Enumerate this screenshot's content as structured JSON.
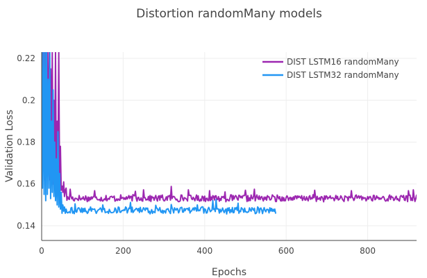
{
  "chart_data": {
    "type": "line",
    "title": "Distortion randomMany models",
    "xlabel": "Epochs",
    "ylabel": "Validation Loss",
    "xlim": [
      0,
      920
    ],
    "ylim": [
      0.133,
      0.223
    ],
    "x_ticks": [
      0,
      200,
      400,
      600,
      800
    ],
    "y_ticks": [
      0.14,
      0.16,
      0.18,
      0.2,
      0.22
    ],
    "x_tick_labels": [
      "0",
      "200",
      "400",
      "600",
      "800"
    ],
    "y_tick_labels": [
      "0.14",
      "0.16",
      "0.18",
      "0.2",
      "0.22"
    ],
    "grid": true,
    "legend_position": "top-right",
    "series": [
      {
        "name": "DIST LSTM16 randomMany",
        "color": "#9c27b0",
        "points": [
          [
            0,
            0.176
          ],
          [
            2,
            0.223
          ],
          [
            4,
            0.168
          ],
          [
            6,
            0.223
          ],
          [
            8,
            0.162
          ],
          [
            10,
            0.223
          ],
          [
            12,
            0.165
          ],
          [
            14,
            0.223
          ],
          [
            16,
            0.17
          ],
          [
            18,
            0.223
          ],
          [
            20,
            0.162
          ],
          [
            22,
            0.215
          ],
          [
            24,
            0.168
          ],
          [
            26,
            0.223
          ],
          [
            28,
            0.16
          ],
          [
            30,
            0.2
          ],
          [
            32,
            0.165
          ],
          [
            34,
            0.223
          ],
          [
            36,
            0.16
          ],
          [
            38,
            0.19
          ],
          [
            40,
            0.166
          ],
          [
            42,
            0.223
          ],
          [
            44,
            0.162
          ],
          [
            46,
            0.178
          ],
          [
            48,
            0.157
          ],
          [
            50,
            0.159
          ],
          [
            52,
            0.156
          ],
          [
            54,
            0.161
          ],
          [
            56,
            0.154
          ],
          [
            58,
            0.157
          ],
          [
            60,
            0.158
          ]
        ],
        "trend": {
          "start": 60,
          "end": 920,
          "step": 2,
          "base": 0.1532,
          "noise_amplitude": 0.0015
        },
        "spikes": [
          [
            70,
            0.1575
          ],
          [
            130,
            0.1568
          ],
          [
            230,
            0.1565
          ],
          [
            250,
            0.1572
          ],
          [
            318,
            0.1588
          ],
          [
            360,
            0.1572
          ],
          [
            412,
            0.1568
          ],
          [
            425,
            0.1588
          ],
          [
            450,
            0.1562
          ],
          [
            500,
            0.157
          ],
          [
            522,
            0.1575
          ],
          [
            585,
            0.1585
          ],
          [
            670,
            0.157
          ],
          [
            760,
            0.1568
          ],
          [
            815,
            0.1582
          ],
          [
            825,
            0.159
          ],
          [
            900,
            0.1568
          ],
          [
            912,
            0.1572
          ]
        ]
      },
      {
        "name": "DIST LSTM32 randomMany",
        "color": "#2196f3",
        "points": [
          [
            0,
            0.223
          ],
          [
            2,
            0.158
          ],
          [
            4,
            0.223
          ],
          [
            6,
            0.155
          ],
          [
            8,
            0.223
          ],
          [
            10,
            0.152
          ],
          [
            12,
            0.223
          ],
          [
            14,
            0.155
          ],
          [
            16,
            0.21
          ],
          [
            18,
            0.158
          ],
          [
            20,
            0.223
          ],
          [
            22,
            0.153
          ],
          [
            24,
            0.19
          ],
          [
            26,
            0.156
          ],
          [
            28,
            0.205
          ],
          [
            30,
            0.154
          ],
          [
            32,
            0.18
          ],
          [
            34,
            0.152
          ],
          [
            36,
            0.172
          ],
          [
            38,
            0.15
          ],
          [
            40,
            0.185
          ],
          [
            42,
            0.149
          ],
          [
            44,
            0.165
          ],
          [
            46,
            0.148
          ],
          [
            48,
            0.156
          ],
          [
            50,
            0.146
          ],
          [
            52,
            0.15
          ],
          [
            54,
            0.147
          ],
          [
            56,
            0.149
          ],
          [
            58,
            0.146
          ],
          [
            60,
            0.148
          ]
        ],
        "trend": {
          "start": 60,
          "end": 574,
          "step": 2,
          "base": 0.1474,
          "noise_amplitude": 0.0015
        },
        "spikes": [
          [
            82,
            0.1505
          ],
          [
            120,
            0.149
          ],
          [
            150,
            0.15
          ],
          [
            195,
            0.1505
          ],
          [
            218,
            0.1512
          ],
          [
            280,
            0.1498
          ],
          [
            318,
            0.1502
          ],
          [
            345,
            0.1495
          ],
          [
            382,
            0.15
          ],
          [
            420,
            0.152
          ],
          [
            428,
            0.1525
          ],
          [
            482,
            0.1508
          ],
          [
            535,
            0.15
          ],
          [
            555,
            0.1505
          ],
          [
            567,
            0.15
          ]
        ]
      }
    ]
  }
}
